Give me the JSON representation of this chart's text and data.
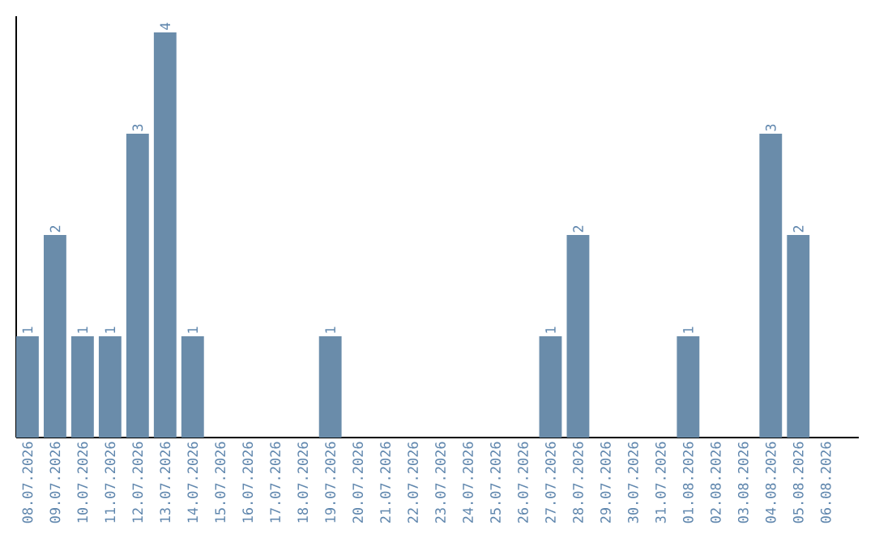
{
  "chart_data": {
    "type": "bar",
    "categories": [
      "08.07.2026",
      "09.07.2026",
      "10.07.2026",
      "11.07.2026",
      "12.07.2026",
      "13.07.2026",
      "14.07.2026",
      "15.07.2026",
      "16.07.2026",
      "17.07.2026",
      "18.07.2026",
      "19.07.2026",
      "20.07.2026",
      "21.07.2026",
      "22.07.2026",
      "23.07.2026",
      "24.07.2026",
      "25.07.2026",
      "26.07.2026",
      "27.07.2026",
      "28.07.2026",
      "29.07.2026",
      "30.07.2026",
      "31.07.2026",
      "01.08.2026",
      "02.08.2026",
      "03.08.2026",
      "04.08.2026",
      "05.08.2026",
      "06.08.2026"
    ],
    "values": [
      1,
      2,
      1,
      1,
      3,
      4,
      1,
      0,
      0,
      0,
      0,
      1,
      0,
      0,
      0,
      0,
      0,
      0,
      0,
      1,
      2,
      0,
      0,
      0,
      1,
      0,
      0,
      3,
      2,
      0
    ],
    "value_labels": [
      "1",
      "2",
      "1",
      "1",
      "3",
      "4",
      "1",
      null,
      null,
      null,
      null,
      "1",
      null,
      null,
      null,
      null,
      null,
      null,
      null,
      "1",
      "2",
      null,
      null,
      null,
      "1",
      null,
      null,
      "3",
      "2",
      null
    ],
    "color": "#6a8caa",
    "ylim": [
      0,
      4.16
    ],
    "tick_labels": "x"
  }
}
